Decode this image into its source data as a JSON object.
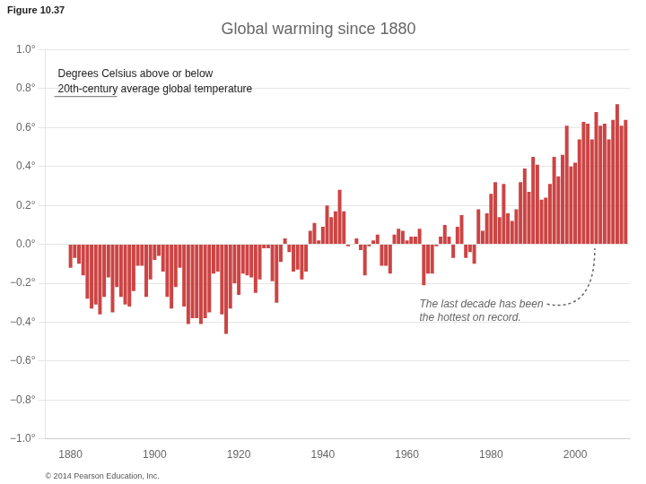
{
  "chart_data": {
    "type": "bar",
    "title": "Global warming since 1880",
    "annotations": [
      "Figure 10.37",
      "Degrees Celsius above or below",
      "20th-century average global temperature",
      "The last decade has been\nthe hottest on record.",
      "© 2014 Pearson Education, Inc."
    ],
    "x": [
      1880,
      1881,
      1882,
      1883,
      1884,
      1885,
      1886,
      1887,
      1888,
      1889,
      1890,
      1891,
      1892,
      1893,
      1894,
      1895,
      1896,
      1897,
      1898,
      1899,
      1900,
      1901,
      1902,
      1903,
      1904,
      1905,
      1906,
      1907,
      1908,
      1909,
      1910,
      1911,
      1912,
      1913,
      1914,
      1915,
      1916,
      1917,
      1918,
      1919,
      1920,
      1921,
      1922,
      1923,
      1924,
      1925,
      1926,
      1927,
      1928,
      1929,
      1930,
      1931,
      1932,
      1933,
      1934,
      1935,
      1936,
      1937,
      1938,
      1939,
      1940,
      1941,
      1942,
      1943,
      1944,
      1945,
      1946,
      1947,
      1948,
      1949,
      1950,
      1951,
      1952,
      1953,
      1954,
      1955,
      1956,
      1957,
      1958,
      1959,
      1960,
      1961,
      1962,
      1963,
      1964,
      1965,
      1966,
      1967,
      1968,
      1969,
      1970,
      1971,
      1972,
      1973,
      1974,
      1975,
      1976,
      1977,
      1978,
      1979,
      1980,
      1981,
      1982,
      1983,
      1984,
      1985,
      1986,
      1987,
      1988,
      1989,
      1990,
      1991,
      1992,
      1993,
      1994,
      1995,
      1996,
      1997,
      1998,
      1999,
      2000,
      2001,
      2002,
      2003,
      2004,
      2005,
      2006,
      2007,
      2008,
      2009,
      2010,
      2011,
      2012
    ],
    "values": [
      -0.12,
      -0.07,
      -0.1,
      -0.16,
      -0.28,
      -0.33,
      -0.31,
      -0.36,
      -0.27,
      -0.17,
      -0.35,
      -0.22,
      -0.27,
      -0.31,
      -0.32,
      -0.24,
      -0.11,
      -0.11,
      -0.27,
      -0.18,
      -0.08,
      -0.06,
      -0.14,
      -0.27,
      -0.33,
      -0.22,
      -0.12,
      -0.32,
      -0.41,
      -0.38,
      -0.38,
      -0.41,
      -0.38,
      -0.35,
      -0.15,
      -0.14,
      -0.36,
      -0.46,
      -0.33,
      -0.2,
      -0.26,
      -0.15,
      -0.16,
      -0.17,
      -0.25,
      -0.18,
      -0.02,
      -0.02,
      -0.19,
      -0.3,
      -0.09,
      0.03,
      -0.04,
      -0.14,
      -0.13,
      -0.18,
      -0.14,
      0.07,
      0.11,
      0.02,
      0.09,
      0.2,
      0.14,
      0.17,
      0.28,
      0.17,
      -0.01,
      0.0,
      0.03,
      -0.03,
      -0.16,
      -0.01,
      0.02,
      0.05,
      -0.11,
      -0.11,
      -0.15,
      0.05,
      0.08,
      0.07,
      0.02,
      0.04,
      0.04,
      0.08,
      -0.21,
      -0.15,
      -0.15,
      -0.01,
      0.04,
      0.1,
      0.04,
      -0.07,
      0.09,
      0.15,
      -0.07,
      -0.04,
      -0.1,
      0.18,
      0.07,
      0.16,
      0.26,
      0.32,
      0.14,
      0.31,
      0.16,
      0.12,
      0.18,
      0.32,
      0.39,
      0.27,
      0.45,
      0.41,
      0.23,
      0.24,
      0.31,
      0.45,
      0.35,
      0.46,
      0.61,
      0.4,
      0.42,
      0.54,
      0.63,
      0.62,
      0.54,
      0.68,
      0.61,
      0.62,
      0.54,
      0.64,
      0.72,
      0.61,
      0.64
    ],
    "color": "#cc4444",
    "xlim": [
      1874,
      2013
    ],
    "xticks": [
      1880,
      1900,
      1920,
      1940,
      1960,
      1980,
      2000
    ],
    "ylim": [
      -1.0,
      1.0
    ],
    "yticks": [
      {
        "value": 1.0,
        "label": "1.0°"
      },
      {
        "value": 0.8,
        "label": "0.8°"
      },
      {
        "value": 0.6,
        "label": "0.6°"
      },
      {
        "value": 0.4,
        "label": "0.4°"
      },
      {
        "value": 0.2,
        "label": "0.2°"
      },
      {
        "value": 0.0,
        "label": "0.0°"
      },
      {
        "value": -0.2,
        "label": "−0.2°"
      },
      {
        "value": -0.4,
        "label": "−0.4°"
      },
      {
        "value": -0.6,
        "label": "−0.6°"
      },
      {
        "value": -0.8,
        "label": "−0.8°"
      },
      {
        "value": -1.0,
        "label": "−1.0°"
      }
    ],
    "grid": true
  }
}
